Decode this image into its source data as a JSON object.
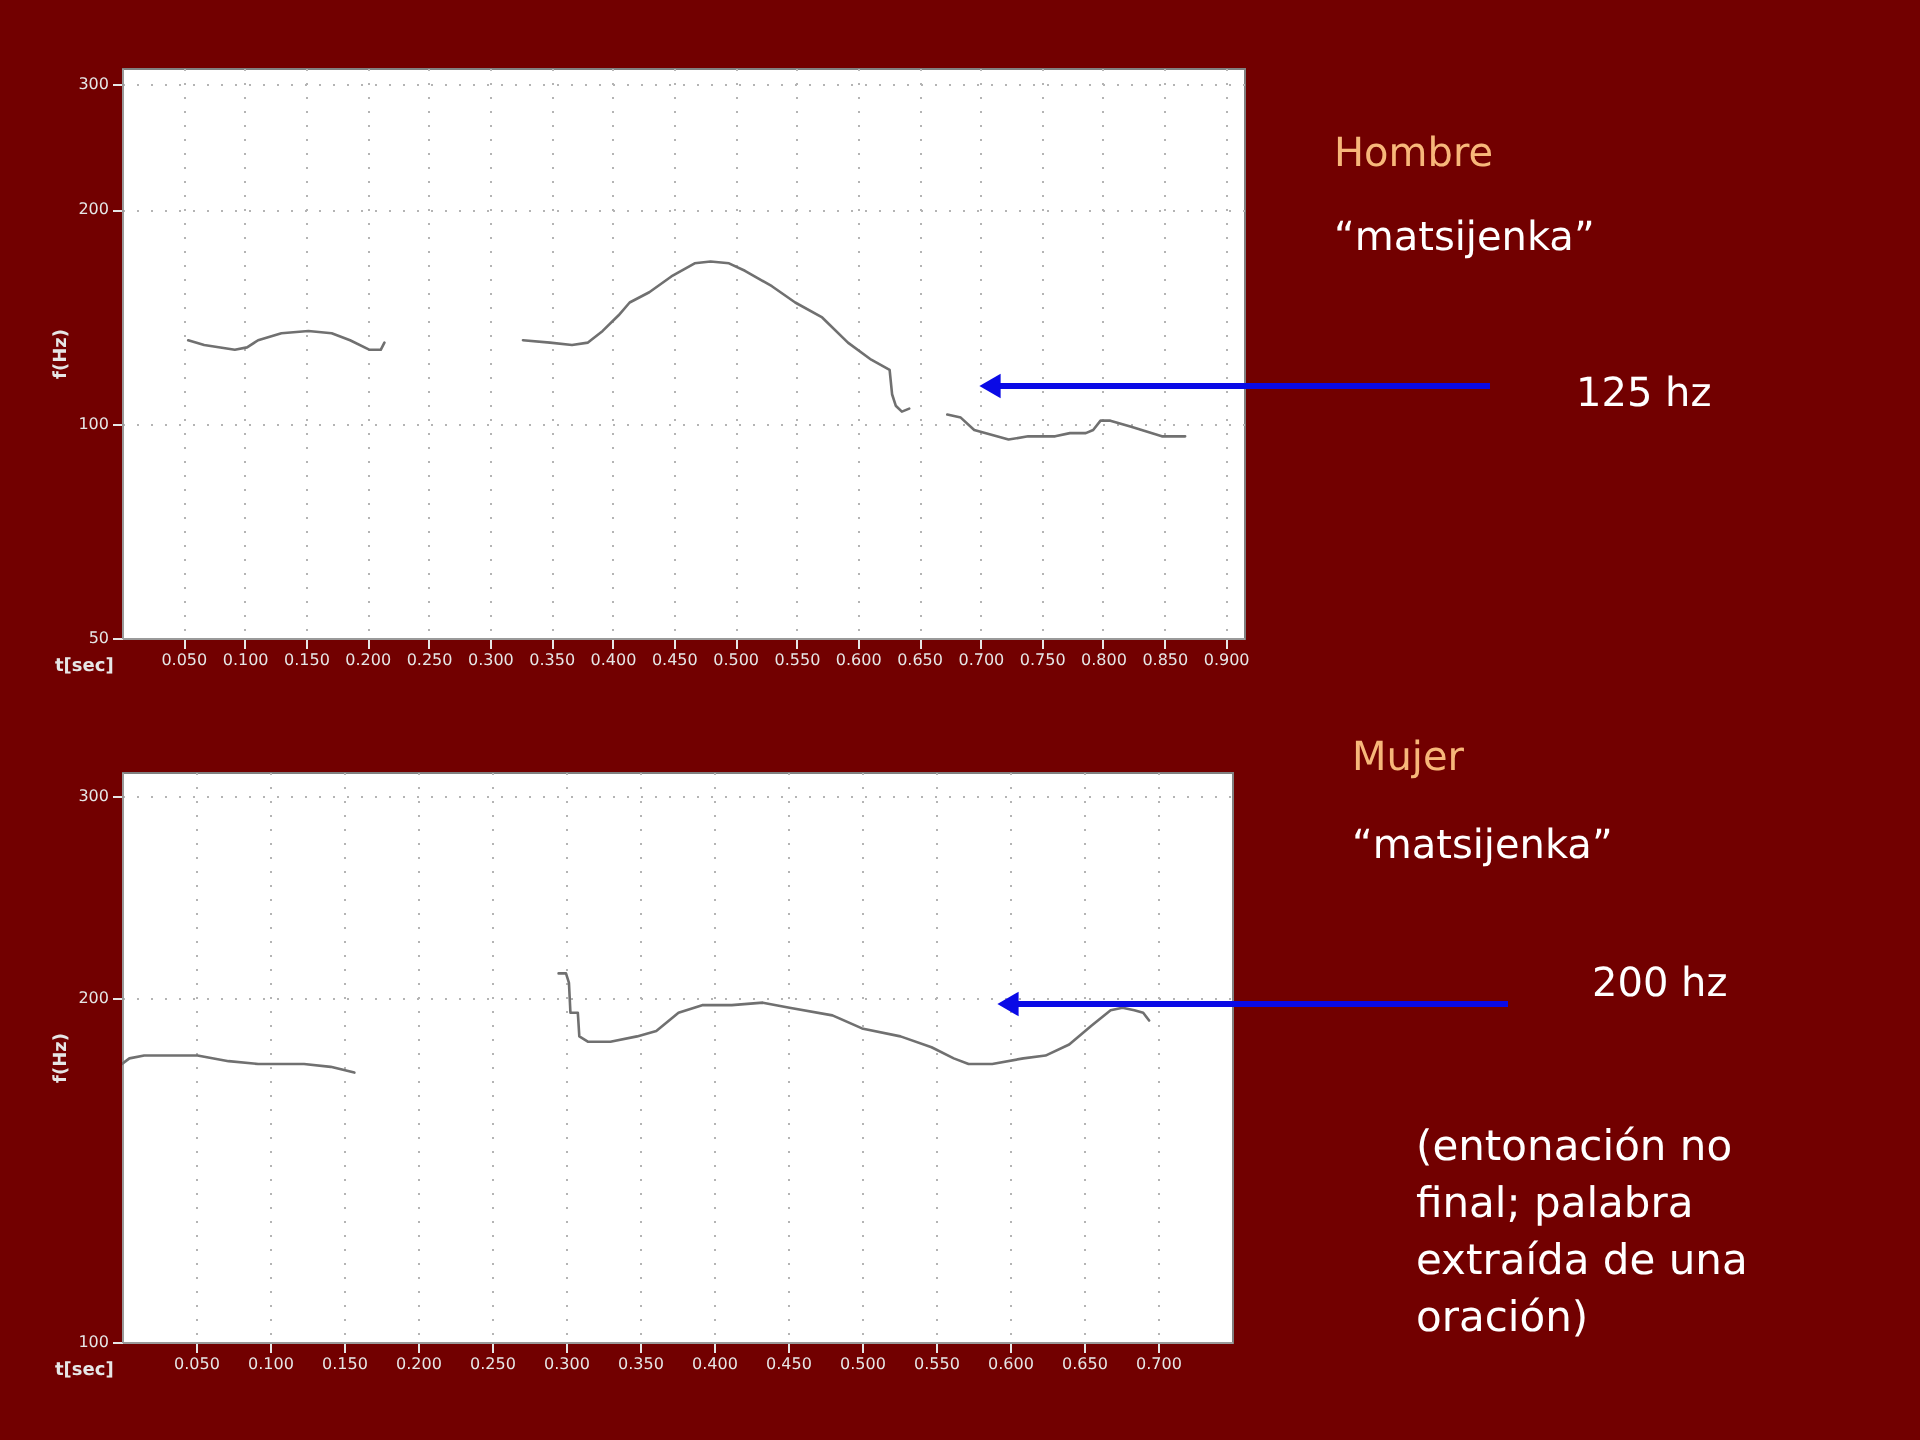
{
  "chart_data": [
    {
      "type": "line",
      "xlabel": "t[sec]",
      "ylabel": "f(Hz)",
      "annotations": [
        "Hombre",
        "“matsijenka”",
        "125 hz"
      ],
      "series": [
        {
          "color": "#707070",
          "x": [
            0.054,
            0.067,
            0.092,
            0.102,
            0.111,
            0.13,
            0.152,
            0.171,
            0.186,
            0.202,
            0.211,
            0.214
          ],
          "values": [
            131,
            129,
            127,
            128,
            131,
            134,
            135,
            134,
            131,
            127,
            127,
            130
          ]
        },
        {
          "color": "#707070",
          "x": [
            0.327,
            0.349,
            0.367,
            0.38,
            0.392,
            0.405,
            0.414,
            0.43,
            0.448,
            0.467,
            0.48,
            0.495,
            0.508,
            0.53,
            0.549,
            0.571,
            0.592,
            0.611,
            0.626,
            0.628,
            0.631,
            0.636,
            0.642
          ],
          "values": [
            131,
            130,
            129,
            130,
            135,
            142,
            148,
            153,
            161,
            168,
            169,
            168,
            164,
            156,
            148,
            141,
            130,
            123,
            119,
            110,
            106,
            104,
            105
          ]
        },
        {
          "color": "#707070",
          "x": [
            0.673,
            0.684,
            0.695,
            0.723,
            0.739,
            0.761,
            0.773,
            0.786,
            0.792,
            0.798,
            0.806,
            0.823,
            0.848,
            0.867
          ],
          "values": [
            103,
            102,
            98,
            95,
            96,
            96,
            97,
            97,
            98,
            101,
            101,
            99,
            96,
            96
          ]
        }
      ],
      "xlim": [
        0,
        0.915
      ],
      "ylim": [
        50,
        316
      ],
      "xticks": [
        {
          "value": 0.05,
          "label": "0.050"
        },
        {
          "value": 0.1,
          "label": "0.100"
        },
        {
          "value": 0.15,
          "label": "0.150"
        },
        {
          "value": 0.2,
          "label": "0.200"
        },
        {
          "value": 0.25,
          "label": "0.250"
        },
        {
          "value": 0.3,
          "label": "0.300"
        },
        {
          "value": 0.35,
          "label": "0.350"
        },
        {
          "value": 0.4,
          "label": "0.400"
        },
        {
          "value": 0.45,
          "label": "0.450"
        },
        {
          "value": 0.5,
          "label": "0.500"
        },
        {
          "value": 0.55,
          "label": "0.550"
        },
        {
          "value": 0.6,
          "label": "0.600"
        },
        {
          "value": 0.65,
          "label": "0.650"
        },
        {
          "value": 0.7,
          "label": "0.700"
        },
        {
          "value": 0.75,
          "label": "0.750"
        },
        {
          "value": 0.8,
          "label": "0.800"
        },
        {
          "value": 0.85,
          "label": "0.850"
        },
        {
          "value": 0.9,
          "label": "0.900"
        }
      ],
      "yticks": [
        50,
        100,
        200,
        300
      ],
      "log": true,
      "grid": true
    },
    {
      "type": "line",
      "xlabel": "t[sec]",
      "ylabel": "f(Hz)",
      "annotations": [
        "Mujer",
        "“matsijenka”",
        "200 hz",
        "(entonación no final; palabra extraída de una oración)"
      ],
      "series": [
        {
          "color": "#707070",
          "x": [
            0.0,
            0.005,
            0.015,
            0.033,
            0.051,
            0.072,
            0.092,
            0.123,
            0.141,
            0.157
          ],
          "values": [
            175,
            177,
            178,
            178,
            178,
            176,
            175,
            175,
            174,
            172
          ]
        },
        {
          "color": "#707070",
          "x": [
            0.295,
            0.3,
            0.302,
            0.303,
            0.308,
            0.309,
            0.315,
            0.33,
            0.348,
            0.361,
            0.376,
            0.392,
            0.412,
            0.433,
            0.451,
            0.48,
            0.5,
            0.526,
            0.547,
            0.562,
            0.572,
            0.588,
            0.609,
            0.624,
            0.64,
            0.655,
            0.668,
            0.676,
            0.684,
            0.69,
            0.694
          ],
          "values": [
            210,
            210,
            206,
            194,
            194,
            185,
            183,
            183,
            185,
            187,
            194,
            197,
            197,
            198,
            196,
            193,
            188,
            185,
            181,
            177,
            175,
            175,
            177,
            178,
            182,
            189,
            195,
            196,
            195,
            194,
            191
          ]
        }
      ],
      "xlim": [
        0,
        0.75
      ],
      "ylim": [
        100,
        315
      ],
      "xticks": [
        {
          "value": 0.05,
          "label": "0.050"
        },
        {
          "value": 0.1,
          "label": "0.100"
        },
        {
          "value": 0.15,
          "label": "0.150"
        },
        {
          "value": 0.2,
          "label": "0.200"
        },
        {
          "value": 0.25,
          "label": "0.250"
        },
        {
          "value": 0.3,
          "label": "0.300"
        },
        {
          "value": 0.35,
          "label": "0.350"
        },
        {
          "value": 0.4,
          "label": "0.400"
        },
        {
          "value": 0.45,
          "label": "0.450"
        },
        {
          "value": 0.5,
          "label": "0.500"
        },
        {
          "value": 0.55,
          "label": "0.550"
        },
        {
          "value": 0.6,
          "label": "0.600"
        },
        {
          "value": 0.65,
          "label": "0.650"
        },
        {
          "value": 0.7,
          "label": "0.700"
        }
      ],
      "yticks": [
        100,
        200,
        300
      ],
      "log": true,
      "grid": true
    }
  ]
}
